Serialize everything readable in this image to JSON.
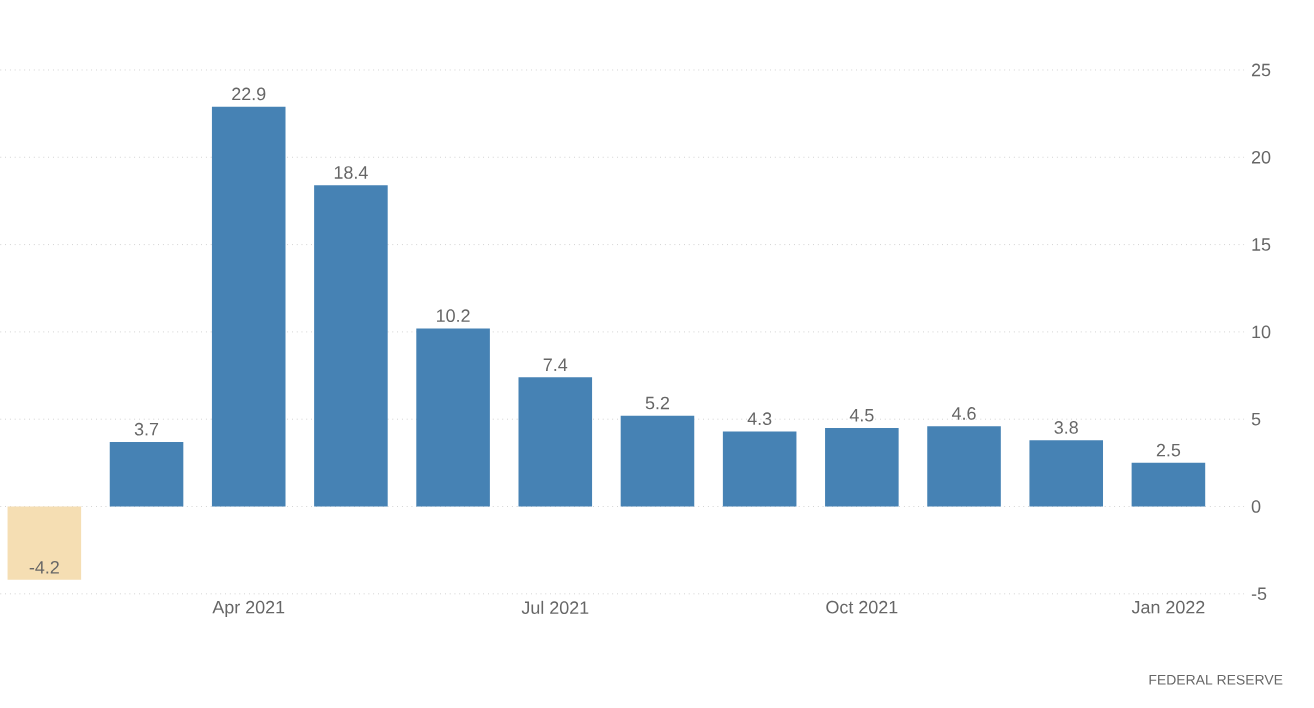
{
  "chart_data": {
    "type": "bar",
    "categories": [
      null,
      null,
      "Apr 2021",
      null,
      null,
      "Jul 2021",
      null,
      null,
      "Oct 2021",
      null,
      null,
      "Jan 2022"
    ],
    "values": [
      -4.2,
      3.7,
      22.9,
      18.4,
      10.2,
      7.4,
      5.2,
      4.3,
      4.5,
      4.6,
      3.8,
      2.5
    ],
    "colors": [
      "#f5deb3",
      "#4682b4",
      "#4682b4",
      "#4682b4",
      "#4682b4",
      "#4682b4",
      "#4682b4",
      "#4682b4",
      "#4682b4",
      "#4682b4",
      "#4682b4",
      "#4682b4"
    ],
    "ylim": [
      -5,
      25
    ],
    "yticks": [
      -5,
      0,
      5,
      10,
      15,
      20,
      25
    ],
    "grid": "y",
    "data_labels": true,
    "annotations": [
      "FEDERAL RESERVE"
    ]
  }
}
